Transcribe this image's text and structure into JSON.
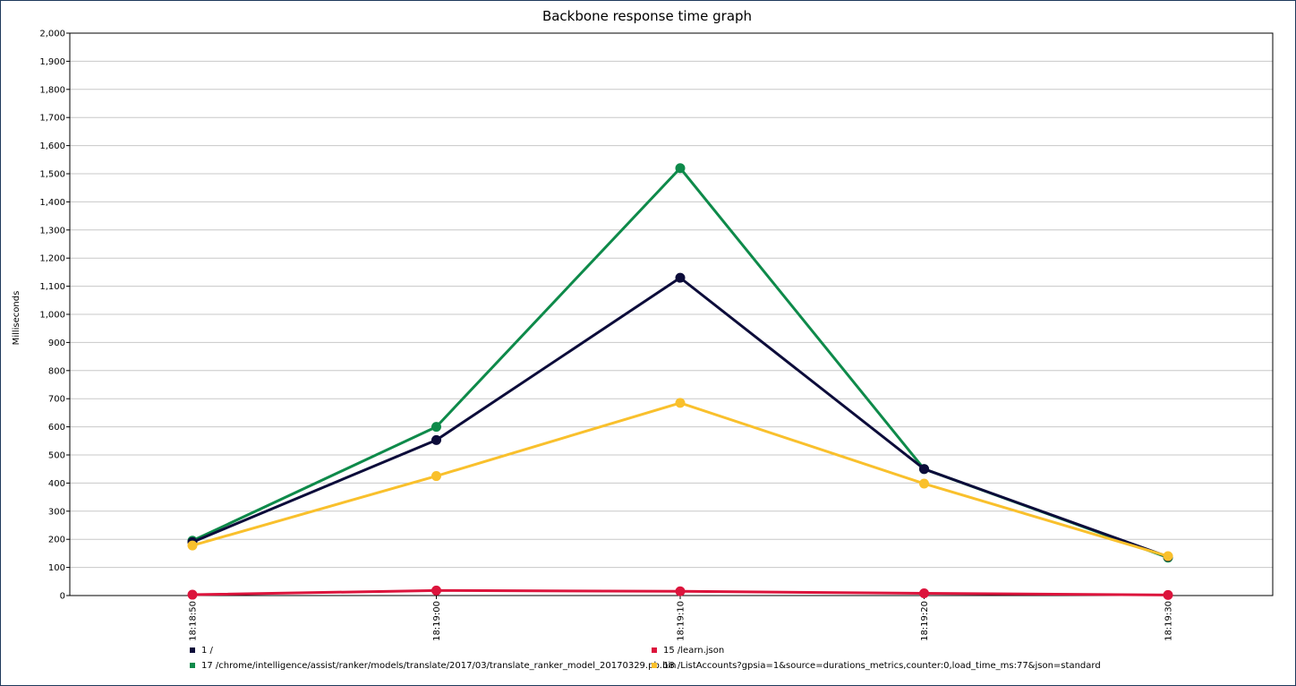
{
  "colors": {
    "series_1": "#0c0c3a",
    "series_15": "#dc143c",
    "series_17": "#0e8a4a",
    "series_18": "#f9c02c",
    "gridline": "#c8c8c8",
    "frame": "#1f3a5c"
  },
  "chart_data": {
    "type": "line",
    "title": "Backbone response time graph",
    "xlabel": "",
    "ylabel": "Milliseconds",
    "x": [
      "18:18:50",
      "18:19:00",
      "18:19:10",
      "18:19:20",
      "18:19:30"
    ],
    "ylim": [
      0,
      2000
    ],
    "yticks": [
      "0",
      "100",
      "200",
      "300",
      "400",
      "500",
      "600",
      "700",
      "800",
      "900",
      "1,000",
      "1,100",
      "1,200",
      "1,300",
      "1,400",
      "1,500",
      "1,600",
      "1,700",
      "1,800",
      "1,900",
      "2,000"
    ],
    "grid": true,
    "legend_position": "bottom",
    "series": [
      {
        "name": "1 /",
        "color": "#0c0c3a",
        "values": [
          190,
          553,
          1130,
          450,
          138
        ]
      },
      {
        "name": "15 /learn.json",
        "color": "#dc143c",
        "values": [
          3,
          18,
          15,
          8,
          2
        ]
      },
      {
        "name": "17 /chrome/intelligence/assist/ranker/models/translate/2017/03/translate_ranker_model_20170329.pb.bin",
        "color": "#0e8a4a",
        "values": [
          195,
          600,
          1520,
          450,
          135
        ]
      },
      {
        "name": "18 /ListAccounts?gpsia=1&source=durations_metrics,counter:0,load_time_ms:77&json=standard",
        "color": "#f9c02c",
        "values": [
          178,
          425,
          685,
          398,
          140
        ]
      }
    ],
    "series_draw_order": [
      2,
      0,
      3,
      1
    ],
    "legend_order": [
      0,
      1,
      2,
      3
    ]
  }
}
